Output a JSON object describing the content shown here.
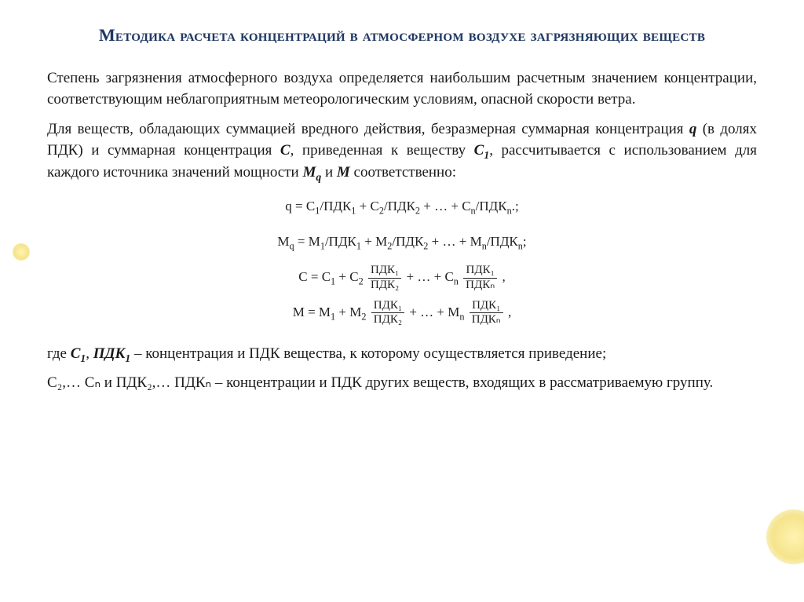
{
  "colors": {
    "title": "#1f3864",
    "text": "#1a1a1a",
    "background": "#ffffff",
    "accent": "#f5e48c"
  },
  "typography": {
    "title_fontsize_pt": 17,
    "body_fontsize_pt": 14,
    "formula_fontsize_pt": 13,
    "font_family": "Georgia/Times-like serif",
    "title_smallcaps": true
  },
  "title": "Методика расчета концентраций в атмосферном воздухе загрязняющих веществ",
  "paragraphs": {
    "p1": "Степень загрязнения атмосферного воздуха определяется наибольшим расчетным значением концентрации, соответствующим неблагоприятным метеорологическим условиям, опасной скорости ветра.",
    "p2_pre": "Для веществ, обладающих суммацией вредного действия, безразмерная суммарная концентрация ",
    "p2_q": "q",
    "p2_mid1": " (в долях ПДК) и суммарная концентрация ",
    "p2_C": "C",
    "p2_mid2": ", приведенная к веществу ",
    "p2_C1": "C",
    "p2_C1_sub": "1",
    "p2_mid3": ", рассчитывается с использованием для каждого источника значений мощности ",
    "p2_Mq": "M",
    "p2_Mq_sub": "q",
    "p2_mid4": " и ",
    "p2_M": "M",
    "p2_post": " соответственно:"
  },
  "formulas": {
    "f1": "q = C₁/ПДК₁ + C₂/ПДК₂ + … + Cₙ/ПДКₙ.;",
    "f2": "Mq = M₁/ПДК₁ + M₂/ПДК₂ + … + Mₙ/ПДКₙ;",
    "f3_parts": {
      "lead": "C = C₁ + C₂",
      "frac1_num": "ПДК₁",
      "frac1_den": "ПДК₂",
      "mid": " + … + Cₙ ",
      "frac2_num": "ПДК₁",
      "frac2_den": "ПДКₙ",
      "tail": " ,"
    },
    "f4_parts": {
      "lead": "M = M₁ + M₂ ",
      "frac1_num": "ПДК₁",
      "frac1_den": "ПДК₂",
      "mid": " + … + Mₙ ",
      "frac2_num": "ПДК₁",
      "frac2_den": "ПДКₙ",
      "tail": " ,"
    }
  },
  "legend": {
    "l1_pre": "где ",
    "l1_C1": "С",
    "l1_C1_sub": "1",
    "l1_sep": ", ",
    "l1_PDK1": "ПДК",
    "l1_PDK1_sub": "1",
    "l1_post": " – концентрация и ПДК вещества, к которому осуществляется приведение;",
    "l2": "С₂,… Сₙ и ПДК₂,… ПДКₙ – концентрации и ПДК других веществ, входящих в рассматриваемую группу."
  }
}
